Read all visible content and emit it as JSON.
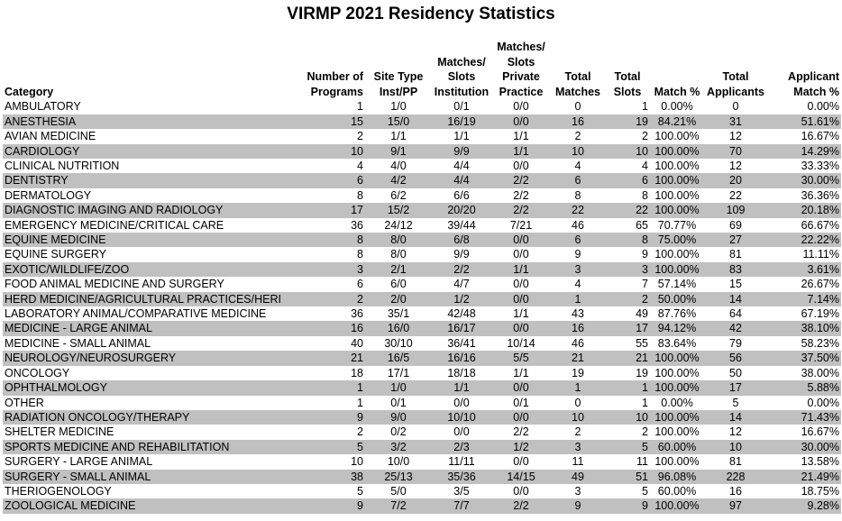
{
  "title": "VIRMP 2021 Residency Statistics",
  "headers": [
    "Category",
    "Number of\nPrograms",
    "Site Type\nInst/PP",
    "Matches/\nSlots\nInstitution",
    "Matches/\nSlots\nPrivate\nPractice",
    "Total\nMatches",
    "Total\nSlots",
    "Match %",
    "Total\nApplicants",
    "Applicant\nMatch %"
  ],
  "rows": [
    [
      "AMBULATORY",
      "1",
      "1/0",
      "0/1",
      "0/0",
      "0",
      "1",
      "0.00%",
      "0",
      "0.00%"
    ],
    [
      "ANESTHESIA",
      "15",
      "15/0",
      "16/19",
      "0/0",
      "16",
      "19",
      "84.21%",
      "31",
      "51.61%"
    ],
    [
      "AVIAN MEDICINE",
      "2",
      "1/1",
      "1/1",
      "1/1",
      "2",
      "2",
      "100.00%",
      "12",
      "16.67%"
    ],
    [
      "CARDIOLOGY",
      "10",
      "9/1",
      "9/9",
      "1/1",
      "10",
      "10",
      "100.00%",
      "70",
      "14.29%"
    ],
    [
      "CLINICAL NUTRITION",
      "4",
      "4/0",
      "4/4",
      "0/0",
      "4",
      "4",
      "100.00%",
      "12",
      "33.33%"
    ],
    [
      "DENTISTRY",
      "6",
      "4/2",
      "4/4",
      "2/2",
      "6",
      "6",
      "100.00%",
      "20",
      "30.00%"
    ],
    [
      "DERMATOLOGY",
      "8",
      "6/2",
      "6/6",
      "2/2",
      "8",
      "8",
      "100.00%",
      "22",
      "36.36%"
    ],
    [
      "DIAGNOSTIC IMAGING AND RADIOLOGY",
      "17",
      "15/2",
      "20/20",
      "2/2",
      "22",
      "22",
      "100.00%",
      "109",
      "20.18%"
    ],
    [
      "EMERGENCY MEDICINE/CRITICAL CARE",
      "36",
      "24/12",
      "39/44",
      "7/21",
      "46",
      "65",
      "70.77%",
      "69",
      "66.67%"
    ],
    [
      "EQUINE MEDICINE",
      "8",
      "8/0",
      "6/8",
      "0/0",
      "6",
      "8",
      "75.00%",
      "27",
      "22.22%"
    ],
    [
      "EQUINE SURGERY",
      "8",
      "8/0",
      "9/9",
      "0/0",
      "9",
      "9",
      "100.00%",
      "81",
      "11.11%"
    ],
    [
      "EXOTIC/WILDLIFE/ZOO",
      "3",
      "2/1",
      "2/2",
      "1/1",
      "3",
      "3",
      "100.00%",
      "83",
      "3.61%"
    ],
    [
      "FOOD ANIMAL MEDICINE AND SURGERY",
      "6",
      "6/0",
      "4/7",
      "0/0",
      "4",
      "7",
      "57.14%",
      "15",
      "26.67%"
    ],
    [
      "HERD MEDICINE/AGRICULTURAL PRACTICES/HERI",
      "2",
      "2/0",
      "1/2",
      "0/0",
      "1",
      "2",
      "50.00%",
      "14",
      "7.14%"
    ],
    [
      "LABORATORY ANIMAL/COMPARATIVE MEDICINE",
      "36",
      "35/1",
      "42/48",
      "1/1",
      "43",
      "49",
      "87.76%",
      "64",
      "67.19%"
    ],
    [
      "MEDICINE - LARGE ANIMAL",
      "16",
      "16/0",
      "16/17",
      "0/0",
      "16",
      "17",
      "94.12%",
      "42",
      "38.10%"
    ],
    [
      "MEDICINE - SMALL ANIMAL",
      "40",
      "30/10",
      "36/41",
      "10/14",
      "46",
      "55",
      "83.64%",
      "79",
      "58.23%"
    ],
    [
      "NEUROLOGY/NEUROSURGERY",
      "21",
      "16/5",
      "16/16",
      "5/5",
      "21",
      "21",
      "100.00%",
      "56",
      "37.50%"
    ],
    [
      "ONCOLOGY",
      "18",
      "17/1",
      "18/18",
      "1/1",
      "19",
      "19",
      "100.00%",
      "50",
      "38.00%"
    ],
    [
      "OPHTHALMOLOGY",
      "1",
      "1/0",
      "1/1",
      "0/0",
      "1",
      "1",
      "100.00%",
      "17",
      "5.88%"
    ],
    [
      "OTHER",
      "1",
      "0/1",
      "0/0",
      "0/1",
      "0",
      "1",
      "0.00%",
      "5",
      "0.00%"
    ],
    [
      "RADIATION ONCOLOGY/THERAPY",
      "9",
      "9/0",
      "10/10",
      "0/0",
      "10",
      "10",
      "100.00%",
      "14",
      "71.43%"
    ],
    [
      "SHELTER MEDICINE",
      "2",
      "0/2",
      "0/0",
      "2/2",
      "2",
      "2",
      "100.00%",
      "12",
      "16.67%"
    ],
    [
      "SPORTS MEDICINE AND REHABILITATION",
      "5",
      "3/2",
      "2/3",
      "1/2",
      "3",
      "5",
      "60.00%",
      "10",
      "30.00%"
    ],
    [
      "SURGERY - LARGE ANIMAL",
      "10",
      "10/0",
      "11/11",
      "0/0",
      "11",
      "11",
      "100.00%",
      "81",
      "13.58%"
    ],
    [
      "SURGERY - SMALL ANIMAL",
      "38",
      "25/13",
      "35/36",
      "14/15",
      "49",
      "51",
      "96.08%",
      "228",
      "21.49%"
    ],
    [
      "THERIOGENOLOGY",
      "5",
      "5/0",
      "3/5",
      "0/0",
      "3",
      "5",
      "60.00%",
      "16",
      "18.75%"
    ],
    [
      "ZOOLOGICAL MEDICINE",
      "9",
      "7/2",
      "7/7",
      "2/2",
      "9",
      "9",
      "100.00%",
      "97",
      "9.28%"
    ]
  ]
}
